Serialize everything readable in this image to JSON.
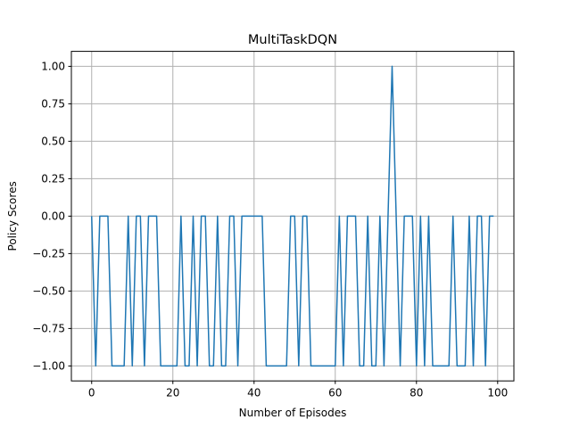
{
  "chart_data": {
    "type": "line",
    "title": "MultiTaskDQN",
    "xlabel": "Number of Episodes",
    "ylabel": "Policy Scores",
    "xlim": [
      -5,
      104
    ],
    "ylim": [
      -1.1,
      1.1
    ],
    "xticks": [
      0,
      20,
      40,
      60,
      80,
      100
    ],
    "xtick_labels": [
      "0",
      "20",
      "40",
      "60",
      "80",
      "100"
    ],
    "yticks": [
      -1.0,
      -0.75,
      -0.5,
      -0.25,
      0.0,
      0.25,
      0.5,
      0.75,
      1.0
    ],
    "ytick_labels": [
      "−1.00",
      "−0.75",
      "−0.50",
      "−0.25",
      "0.00",
      "0.25",
      "0.50",
      "0.75",
      "1.00"
    ],
    "grid": true,
    "series": [
      {
        "color": "#1f77b4",
        "x": [
          0,
          1,
          2,
          3,
          4,
          5,
          6,
          7,
          8,
          9,
          10,
          11,
          12,
          13,
          14,
          15,
          16,
          17,
          18,
          19,
          20,
          21,
          22,
          23,
          24,
          25,
          26,
          27,
          28,
          29,
          30,
          31,
          32,
          33,
          34,
          35,
          36,
          37,
          38,
          39,
          40,
          41,
          42,
          43,
          44,
          45,
          46,
          47,
          48,
          49,
          50,
          51,
          52,
          53,
          54,
          55,
          56,
          57,
          58,
          59,
          60,
          61,
          62,
          63,
          64,
          65,
          66,
          67,
          68,
          69,
          70,
          71,
          72,
          73,
          74,
          75,
          76,
          77,
          78,
          79,
          80,
          81,
          82,
          83,
          84,
          85,
          86,
          87,
          88,
          89,
          90,
          91,
          92,
          93,
          94,
          95,
          96,
          97,
          98,
          99
        ],
        "y": [
          0,
          -1,
          0,
          0,
          0,
          -1,
          -1,
          -1,
          -1,
          0,
          -1,
          0,
          0,
          -1,
          0,
          0,
          0,
          -1,
          -1,
          -1,
          -1,
          -1,
          0,
          -1,
          -1,
          0,
          -1,
          0,
          0,
          -1,
          -1,
          0,
          -1,
          -1,
          0,
          0,
          -1,
          0,
          0,
          0,
          0,
          0,
          0,
          -1,
          -1,
          -1,
          -1,
          -1,
          -1,
          0,
          0,
          -1,
          0,
          0,
          -1,
          -1,
          -1,
          -1,
          -1,
          -1,
          -1,
          0,
          -1,
          0,
          0,
          0,
          -1,
          -1,
          0,
          -1,
          -1,
          0,
          -1,
          0,
          1,
          0,
          -1,
          0,
          0,
          0,
          -1,
          0,
          -1,
          0,
          -1,
          -1,
          -1,
          -1,
          -1,
          0,
          -1,
          -1,
          -1,
          0,
          -1,
          0,
          0,
          -1,
          0,
          0
        ]
      }
    ]
  }
}
